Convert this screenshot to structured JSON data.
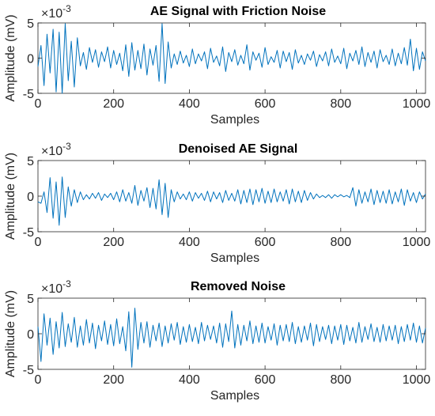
{
  "chart_data": [
    {
      "type": "line",
      "title": "AE Signal with Friction Noise",
      "xlabel": "Samples",
      "ylabel": "Amplitude (mV)",
      "y_multiplier": "×10",
      "y_multiplier_exp": "-3",
      "xlim": [
        0,
        1024
      ],
      "ylim": [
        -5,
        5
      ],
      "xticks": [
        "0",
        "200",
        "400",
        "600",
        "800",
        "1000"
      ],
      "yticks": [
        "5",
        "0",
        "-5"
      ],
      "series": [
        {
          "color": "#0072bd",
          "x": [
            0,
            8,
            16,
            24,
            32,
            40,
            48,
            56,
            64,
            72,
            80,
            88,
            96,
            104,
            112,
            120,
            128,
            136,
            144,
            152,
            160,
            168,
            176,
            184,
            192,
            200,
            208,
            216,
            224,
            232,
            240,
            248,
            256,
            264,
            272,
            280,
            288,
            296,
            304,
            312,
            320,
            328,
            336,
            344,
            352,
            360,
            368,
            376,
            384,
            392,
            400,
            408,
            416,
            424,
            432,
            440,
            448,
            456,
            464,
            472,
            480,
            488,
            496,
            504,
            512,
            520,
            528,
            536,
            544,
            552,
            560,
            568,
            576,
            584,
            592,
            600,
            608,
            616,
            624,
            632,
            640,
            648,
            656,
            664,
            672,
            680,
            688,
            696,
            704,
            712,
            720,
            728,
            736,
            744,
            752,
            760,
            768,
            776,
            784,
            792,
            800,
            808,
            816,
            824,
            832,
            840,
            848,
            856,
            864,
            872,
            880,
            888,
            896,
            904,
            912,
            920,
            928,
            936,
            944,
            952,
            960,
            968,
            976,
            984,
            992,
            1000,
            1008,
            1016,
            1024
          ],
          "y": [
            -1.2,
            1.8,
            -3.9,
            3.4,
            -2.1,
            4.1,
            -4.8,
            3.7,
            -5.0,
            4.9,
            -3.2,
            2.4,
            -4.1,
            2.9,
            -1.1,
            0.8,
            -1.6,
            1.5,
            -0.6,
            1.2,
            -1.3,
            0.9,
            -0.5,
            1.6,
            -1.4,
            1.1,
            -0.9,
            0.7,
            -1.8,
            1.9,
            -2.6,
            2.2,
            -1.7,
            1.1,
            -1.5,
            2.0,
            -2.4,
            1.3,
            -1.0,
            1.8,
            -3.3,
            4.9,
            -3.6,
            2.3,
            -1.4,
            0.6,
            -0.9,
            1.0,
            -0.7,
            0.4,
            -1.2,
            1.3,
            -0.8,
            0.6,
            -0.4,
            0.9,
            -1.5,
            1.4,
            -0.6,
            0.3,
            -1.1,
            1.6,
            -1.9,
            0.8,
            -0.5,
            1.2,
            -1.0,
            0.4,
            -0.8,
            1.9,
            -1.7,
            0.9,
            -0.3,
            0.7,
            -1.3,
            1.5,
            -0.9,
            0.2,
            -0.6,
            1.1,
            -1.4,
            1.0,
            -0.5,
            0.8,
            -1.6,
            1.2,
            -0.7,
            0.4,
            -0.9,
            0.6,
            -0.3,
            1.0,
            -1.2,
            0.5,
            -0.4,
            0.9,
            -1.1,
            1.3,
            -0.6,
            0.3,
            -0.8,
            1.4,
            -1.5,
            0.7,
            -0.4,
            1.1,
            -0.9,
            1.6,
            -1.2,
            0.8,
            -0.6,
            1.0,
            -1.4,
            1.2,
            -0.5,
            0.4,
            -0.9,
            1.3,
            -1.1,
            0.7,
            -0.8,
            1.5,
            -1.0,
            2.7,
            -1.8,
            1.4,
            -1.6,
            0.9,
            -0.4
          ]
        }
      ]
    },
    {
      "type": "line",
      "title": "Denoised AE Signal",
      "xlabel": "Samples",
      "ylabel": "Amplitude (mV)",
      "y_multiplier": "×10",
      "y_multiplier_exp": "-3",
      "xlim": [
        0,
        1024
      ],
      "ylim": [
        -5,
        5
      ],
      "xticks": [
        "0",
        "200",
        "400",
        "600",
        "800",
        "1000"
      ],
      "yticks": [
        "5",
        "0",
        "-5"
      ],
      "series": [
        {
          "color": "#0072bd",
          "x": [
            0,
            8,
            16,
            24,
            32,
            40,
            48,
            56,
            64,
            72,
            80,
            88,
            96,
            104,
            112,
            120,
            128,
            136,
            144,
            152,
            160,
            168,
            176,
            184,
            192,
            200,
            208,
            216,
            224,
            232,
            240,
            248,
            256,
            264,
            272,
            280,
            288,
            296,
            304,
            312,
            320,
            328,
            336,
            344,
            352,
            360,
            368,
            376,
            384,
            392,
            400,
            408,
            416,
            424,
            432,
            440,
            448,
            456,
            464,
            472,
            480,
            488,
            496,
            504,
            512,
            520,
            528,
            536,
            544,
            552,
            560,
            568,
            576,
            584,
            592,
            600,
            608,
            616,
            624,
            632,
            640,
            648,
            656,
            664,
            672,
            680,
            688,
            696,
            704,
            712,
            720,
            728,
            736,
            744,
            752,
            760,
            768,
            776,
            784,
            792,
            800,
            808,
            816,
            824,
            832,
            840,
            848,
            856,
            864,
            872,
            880,
            888,
            896,
            904,
            912,
            920,
            928,
            936,
            944,
            952,
            960,
            968,
            976,
            984,
            992,
            1000,
            1008,
            1016,
            1024
          ],
          "y": [
            -0.8,
            -1.0,
            0.6,
            -2.3,
            2.6,
            -3.1,
            2.0,
            -4.1,
            2.7,
            -3.0,
            1.3,
            -1.4,
            0.9,
            -0.9,
            0.6,
            -0.5,
            0.2,
            -0.4,
            0.4,
            -0.3,
            0.5,
            -0.6,
            0.3,
            -0.2,
            0.4,
            -0.5,
            0.6,
            -0.8,
            0.9,
            -0.7,
            0.5,
            -1.0,
            1.5,
            -1.3,
            0.8,
            -0.7,
            1.2,
            -1.6,
            1.1,
            -1.8,
            2.3,
            -2.6,
            1.8,
            -3.0,
            0.9,
            -0.8,
            0.6,
            -0.4,
            0.3,
            -0.5,
            0.6,
            -0.7,
            0.5,
            -0.3,
            0.4,
            -0.6,
            0.7,
            -0.8,
            0.6,
            -0.4,
            0.5,
            -0.9,
            0.8,
            -0.6,
            0.4,
            -0.7,
            0.9,
            -1.1,
            0.8,
            -0.9,
            1.0,
            -1.2,
            0.9,
            -0.8,
            1.1,
            -1.0,
            0.7,
            -0.9,
            1.0,
            -0.8,
            0.6,
            -0.7,
            0.9,
            -1.1,
            1.0,
            -0.8,
            0.7,
            -0.9,
            0.8,
            -0.6,
            0.5,
            -0.4,
            0.3,
            -0.2,
            0.1,
            -0.2,
            0.2,
            -0.3,
            0.2,
            -0.1,
            0.2,
            -0.1,
            0.1,
            -0.2,
            1.2,
            -1.4,
            0.9,
            -1.0,
            0.6,
            -0.8,
            1.0,
            -1.2,
            0.8,
            -0.9,
            0.7,
            -1.0,
            0.9,
            -1.1,
            0.6,
            -0.8,
            1.0,
            -1.3,
            0.9,
            -0.7,
            0.5,
            -0.9,
            0.6,
            -0.4,
            0.3
          ]
        }
      ]
    },
    {
      "type": "line",
      "title": "Removed Noise",
      "xlabel": "Samples",
      "ylabel": "Amplitude (mV)",
      "y_multiplier": "×10",
      "y_multiplier_exp": "-3",
      "xlim": [
        0,
        1024
      ],
      "ylim": [
        -5,
        5
      ],
      "xticks": [
        "0",
        "200",
        "400",
        "600",
        "800",
        "1000"
      ],
      "yticks": [
        "5",
        "0",
        "-5"
      ],
      "series": [
        {
          "color": "#0072bd",
          "x": [
            0,
            8,
            16,
            24,
            32,
            40,
            48,
            56,
            64,
            72,
            80,
            88,
            96,
            104,
            112,
            120,
            128,
            136,
            144,
            152,
            160,
            168,
            176,
            184,
            192,
            200,
            208,
            216,
            224,
            232,
            240,
            248,
            256,
            264,
            272,
            280,
            288,
            296,
            304,
            312,
            320,
            328,
            336,
            344,
            352,
            360,
            368,
            376,
            384,
            392,
            400,
            408,
            416,
            424,
            432,
            440,
            448,
            456,
            464,
            472,
            480,
            488,
            496,
            504,
            512,
            520,
            528,
            536,
            544,
            552,
            560,
            568,
            576,
            584,
            592,
            600,
            608,
            616,
            624,
            632,
            640,
            648,
            656,
            664,
            672,
            680,
            688,
            696,
            704,
            712,
            720,
            728,
            736,
            744,
            752,
            760,
            768,
            776,
            784,
            792,
            800,
            808,
            816,
            824,
            832,
            840,
            848,
            856,
            864,
            872,
            880,
            888,
            896,
            904,
            912,
            920,
            928,
            936,
            944,
            952,
            960,
            968,
            976,
            984,
            992,
            1000,
            1008,
            1016,
            1024
          ],
          "y": [
            1.0,
            -3.9,
            2.8,
            -1.6,
            2.2,
            -2.9,
            1.7,
            -2.0,
            3.0,
            -1.8,
            1.4,
            -1.2,
            2.3,
            -1.9,
            1.1,
            -1.6,
            2.0,
            -1.3,
            1.5,
            -2.1,
            1.2,
            -1.0,
            1.8,
            -1.5,
            1.3,
            -1.7,
            2.1,
            -1.4,
            1.0,
            -2.4,
            3.1,
            -4.7,
            3.6,
            -2.2,
            1.6,
            -1.3,
            1.7,
            -1.9,
            1.2,
            -1.0,
            1.5,
            -1.8,
            1.1,
            -1.3,
            1.4,
            -0.9,
            1.6,
            -1.5,
            1.0,
            -1.2,
            1.3,
            -1.1,
            0.9,
            -1.4,
            1.6,
            -1.0,
            1.2,
            -0.8,
            1.1,
            -1.3,
            1.5,
            -1.9,
            1.4,
            -1.1,
            3.2,
            -2.0,
            1.3,
            -1.6,
            1.2,
            -1.0,
            1.8,
            -1.4,
            1.1,
            -1.2,
            1.5,
            -1.3,
            1.0,
            -0.9,
            1.4,
            -1.6,
            1.2,
            -1.0,
            1.3,
            -1.1,
            1.6,
            -1.4,
            1.0,
            -1.2,
            1.1,
            -0.9,
            1.5,
            -1.7,
            1.3,
            -1.1,
            1.0,
            -0.8,
            1.2,
            -1.4,
            1.1,
            -0.9,
            1.3,
            -1.5,
            1.2,
            -1.0,
            0.9,
            -1.3,
            1.6,
            -1.2,
            1.0,
            -0.8,
            1.4,
            -1.1,
            0.9,
            -1.2,
            1.3,
            -1.0,
            1.1,
            -0.9,
            1.2,
            -1.4,
            1.0,
            -1.1,
            1.3,
            -0.9,
            1.5,
            -1.2,
            1.1,
            -1.3,
            0.8
          ]
        }
      ]
    }
  ]
}
